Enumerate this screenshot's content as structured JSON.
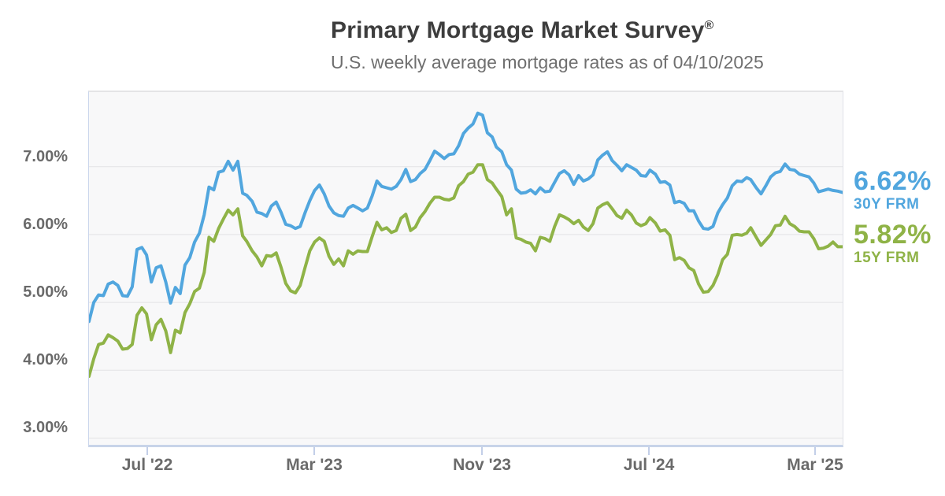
{
  "chart_data": {
    "type": "line",
    "title_main": "Primary Mortgage Market Survey",
    "title_mark": "®",
    "subtitle": "U.S. weekly average mortgage rates as of 04/10/2025",
    "grid": true,
    "legend_position": "right-outside",
    "ylim": [
      2.9,
      8.1
    ],
    "yticks": [
      {
        "label": "7.00%",
        "value": 7.0
      },
      {
        "label": "6.00%",
        "value": 6.0
      },
      {
        "label": "5.00%",
        "value": 5.0
      },
      {
        "label": "4.00%",
        "value": 4.0
      },
      {
        "label": "3.00%",
        "value": 3.0
      }
    ],
    "xticks": [
      {
        "label": "Jul '22",
        "date": "2022-07-01"
      },
      {
        "label": "Mar '23",
        "date": "2023-03-01"
      },
      {
        "label": "Nov '23",
        "date": "2023-11-01"
      },
      {
        "label": "Jul '24",
        "date": "2024-07-01"
      },
      {
        "label": "Mar '25",
        "date": "2025-03-01"
      }
    ],
    "x_dates": [
      "2022-04-07",
      "2022-04-14",
      "2022-04-21",
      "2022-04-28",
      "2022-05-05",
      "2022-05-12",
      "2022-05-19",
      "2022-05-26",
      "2022-06-02",
      "2022-06-09",
      "2022-06-16",
      "2022-06-23",
      "2022-06-30",
      "2022-07-07",
      "2022-07-14",
      "2022-07-21",
      "2022-07-28",
      "2022-08-04",
      "2022-08-11",
      "2022-08-18",
      "2022-08-25",
      "2022-09-01",
      "2022-09-08",
      "2022-09-15",
      "2022-09-22",
      "2022-09-29",
      "2022-10-06",
      "2022-10-13",
      "2022-10-20",
      "2022-10-27",
      "2022-11-03",
      "2022-11-10",
      "2022-11-17",
      "2022-11-23",
      "2022-12-01",
      "2022-12-08",
      "2022-12-15",
      "2022-12-22",
      "2022-12-29",
      "2023-01-05",
      "2023-01-12",
      "2023-01-19",
      "2023-01-26",
      "2023-02-02",
      "2023-02-09",
      "2023-02-16",
      "2023-02-23",
      "2023-03-02",
      "2023-03-09",
      "2023-03-16",
      "2023-03-23",
      "2023-03-30",
      "2023-04-06",
      "2023-04-13",
      "2023-04-20",
      "2023-04-27",
      "2023-05-04",
      "2023-05-11",
      "2023-05-18",
      "2023-05-25",
      "2023-06-01",
      "2023-06-08",
      "2023-06-15",
      "2023-06-22",
      "2023-06-29",
      "2023-07-06",
      "2023-07-13",
      "2023-07-20",
      "2023-07-27",
      "2023-08-03",
      "2023-08-10",
      "2023-08-17",
      "2023-08-24",
      "2023-08-31",
      "2023-09-07",
      "2023-09-14",
      "2023-09-21",
      "2023-09-28",
      "2023-10-05",
      "2023-10-12",
      "2023-10-19",
      "2023-10-26",
      "2023-11-02",
      "2023-11-09",
      "2023-11-16",
      "2023-11-22",
      "2023-11-30",
      "2023-12-07",
      "2023-12-14",
      "2023-12-21",
      "2023-12-28",
      "2024-01-04",
      "2024-01-11",
      "2024-01-18",
      "2024-01-25",
      "2024-02-01",
      "2024-02-08",
      "2024-02-15",
      "2024-02-22",
      "2024-02-29",
      "2024-03-07",
      "2024-03-14",
      "2024-03-21",
      "2024-03-28",
      "2024-04-04",
      "2024-04-11",
      "2024-04-18",
      "2024-04-25",
      "2024-05-02",
      "2024-05-09",
      "2024-05-16",
      "2024-05-23",
      "2024-05-30",
      "2024-06-06",
      "2024-06-13",
      "2024-06-20",
      "2024-06-27",
      "2024-07-03",
      "2024-07-11",
      "2024-07-18",
      "2024-07-25",
      "2024-08-01",
      "2024-08-08",
      "2024-08-15",
      "2024-08-22",
      "2024-08-29",
      "2024-09-05",
      "2024-09-12",
      "2024-09-19",
      "2024-09-26",
      "2024-10-03",
      "2024-10-10",
      "2024-10-17",
      "2024-10-24",
      "2024-10-31",
      "2024-11-07",
      "2024-11-14",
      "2024-11-21",
      "2024-11-27",
      "2024-12-05",
      "2024-12-12",
      "2024-12-19",
      "2024-12-26",
      "2025-01-02",
      "2025-01-09",
      "2025-01-16",
      "2025-01-23",
      "2025-01-30",
      "2025-02-06",
      "2025-02-13",
      "2025-02-20",
      "2025-02-27",
      "2025-03-06",
      "2025-03-13",
      "2025-03-20",
      "2025-03-27",
      "2025-04-03",
      "2025-04-10"
    ],
    "series": [
      {
        "name": "30Y FRM",
        "end_value_label": "6.62%",
        "color": "#51A6DE",
        "values": [
          4.72,
          5.0,
          5.11,
          5.1,
          5.27,
          5.3,
          5.25,
          5.1,
          5.09,
          5.23,
          5.78,
          5.81,
          5.7,
          5.3,
          5.51,
          5.54,
          5.3,
          4.99,
          5.22,
          5.13,
          5.55,
          5.66,
          5.89,
          6.02,
          6.29,
          6.7,
          6.66,
          6.92,
          6.94,
          7.08,
          6.95,
          7.08,
          6.61,
          6.58,
          6.49,
          6.33,
          6.31,
          6.27,
          6.42,
          6.48,
          6.33,
          6.15,
          6.13,
          6.09,
          6.12,
          6.32,
          6.5,
          6.65,
          6.73,
          6.6,
          6.42,
          6.32,
          6.28,
          6.27,
          6.39,
          6.43,
          6.39,
          6.35,
          6.39,
          6.57,
          6.79,
          6.71,
          6.69,
          6.67,
          6.71,
          6.81,
          6.96,
          6.78,
          6.81,
          6.9,
          6.96,
          7.09,
          7.23,
          7.18,
          7.12,
          7.18,
          7.19,
          7.31,
          7.49,
          7.57,
          7.63,
          7.79,
          7.76,
          7.5,
          7.44,
          7.29,
          7.22,
          7.03,
          6.95,
          6.67,
          6.61,
          6.62,
          6.66,
          6.6,
          6.69,
          6.63,
          6.64,
          6.77,
          6.9,
          6.94,
          6.88,
          6.74,
          6.87,
          6.79,
          6.82,
          6.88,
          7.1,
          7.17,
          7.22,
          7.09,
          7.02,
          6.94,
          7.03,
          6.99,
          6.95,
          6.87,
          6.86,
          6.95,
          6.89,
          6.77,
          6.78,
          6.73,
          6.47,
          6.49,
          6.46,
          6.35,
          6.35,
          6.2,
          6.09,
          6.08,
          6.12,
          6.32,
          6.44,
          6.54,
          6.72,
          6.79,
          6.78,
          6.84,
          6.81,
          6.69,
          6.6,
          6.72,
          6.85,
          6.91,
          6.93,
          7.04,
          6.96,
          6.95,
          6.89,
          6.87,
          6.85,
          6.76,
          6.63,
          6.65,
          6.67,
          6.65,
          6.64,
          6.62
        ]
      },
      {
        "name": "15Y FRM",
        "end_value_label": "5.82%",
        "color": "#8FB347",
        "values": [
          3.91,
          4.17,
          4.38,
          4.4,
          4.52,
          4.48,
          4.43,
          4.31,
          4.32,
          4.38,
          4.81,
          4.92,
          4.83,
          4.45,
          4.67,
          4.75,
          4.58,
          4.26,
          4.59,
          4.55,
          4.85,
          4.98,
          5.16,
          5.21,
          5.44,
          5.96,
          5.9,
          6.09,
          6.23,
          6.36,
          6.29,
          6.38,
          5.98,
          5.9,
          5.76,
          5.67,
          5.54,
          5.69,
          5.68,
          5.73,
          5.52,
          5.28,
          5.17,
          5.14,
          5.25,
          5.51,
          5.76,
          5.89,
          5.95,
          5.9,
          5.68,
          5.56,
          5.64,
          5.54,
          5.76,
          5.71,
          5.76,
          5.75,
          5.75,
          5.97,
          6.18,
          6.07,
          6.1,
          6.03,
          6.06,
          6.24,
          6.3,
          6.06,
          6.11,
          6.25,
          6.34,
          6.46,
          6.55,
          6.55,
          6.52,
          6.51,
          6.54,
          6.72,
          6.78,
          6.89,
          6.92,
          7.03,
          7.03,
          6.81,
          6.76,
          6.67,
          6.56,
          6.29,
          6.38,
          5.95,
          5.93,
          5.89,
          5.87,
          5.76,
          5.96,
          5.94,
          5.9,
          6.12,
          6.29,
          6.26,
          6.22,
          6.16,
          6.21,
          6.11,
          6.06,
          6.16,
          6.39,
          6.44,
          6.47,
          6.38,
          6.28,
          6.24,
          6.36,
          6.29,
          6.17,
          6.13,
          6.16,
          6.25,
          6.17,
          6.05,
          6.07,
          5.99,
          5.63,
          5.66,
          5.62,
          5.51,
          5.47,
          5.27,
          5.15,
          5.16,
          5.25,
          5.41,
          5.63,
          5.71,
          5.99,
          6.0,
          5.99,
          6.02,
          6.1,
          5.96,
          5.84,
          5.92,
          6.0,
          6.13,
          6.14,
          6.27,
          6.16,
          6.12,
          6.05,
          6.04,
          6.04,
          5.94,
          5.79,
          5.8,
          5.83,
          5.89,
          5.82,
          5.82
        ]
      }
    ]
  },
  "colors": {
    "line_30y": "#51A6DE",
    "line_15y": "#8FB347",
    "title_text": "#3D3D3D",
    "subtitle_text": "#6F6F6F",
    "axis_label": "#6A6A6A",
    "plot_background": "#F8F8F9",
    "plot_border_bottom": "#C8D4E9",
    "tick_mark": "#C3CFE8",
    "gridline": "#E3E3E6"
  }
}
